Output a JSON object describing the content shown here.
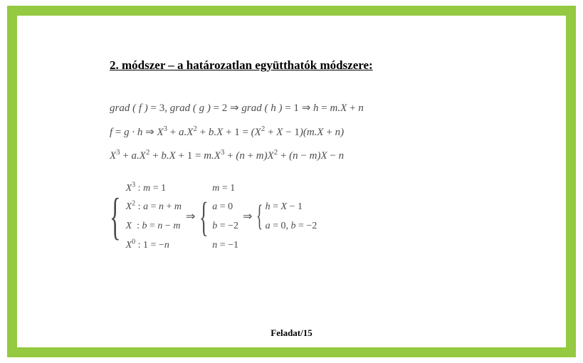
{
  "heading": "2. módszer – a határozatlan együtthatók módszere:",
  "math": {
    "line1_html": "<span>grad</span> ( <span>f</span> ) <span class='upright'>= 3,</span> <span>grad</span> ( <span>g</span> ) <span class='upright'>= 2</span> <span class='upright'>⇒</span> <span>grad</span> ( <span>h</span> ) <span class='upright'>= 1</span> <span class='upright'>⇒</span> <span>h</span> <span class='upright'>=</span> <span>m.X</span> <span class='upright'>+</span> <span>n</span>",
    "line2_html": "<span>f</span> <span class='upright'>=</span> <span>g · h</span> <span class='upright'>⇒</span> <span>X</span><sup class='upright'>3</sup> <span class='upright'>+</span> <span>a.X</span><sup class='upright'>2</sup> <span class='upright'>+</span> <span>b.X</span> <span class='upright'>+ 1 =</span> (<span>X</span><sup class='upright'>2</sup> <span class='upright'>+</span> <span>X</span> <span class='upright'>− 1</span>)(<span>m.X</span> <span class='upright'>+</span> <span>n</span>)",
    "line3_html": "<span>X</span><sup class='upright'>3</sup> <span class='upright'>+</span> <span>a.X</span><sup class='upright'>2</sup> <span class='upright'>+</span> <span>b.X</span> <span class='upright'>+ 1 =</span> <span>m.X</span><sup class='upright'>3</sup> <span class='upright'>+</span> (<span>n</span> <span class='upright'>+</span> <span>m</span>)<span>X</span><sup class='upright'>2</sup> <span class='upright'>+</span> (<span>n</span> <span class='upright'>−</span> <span>m</span>)<span>X</span> <span class='upright'>−</span> <span>n</span>"
  },
  "system1": {
    "r1": "X³ : m = 1",
    "r2": "X² : a = n + m",
    "r3": "X  : b = n − m",
    "r4": "X⁰ : 1 = −n"
  },
  "system2": {
    "r1": "m = 1",
    "r2": "a = 0",
    "r3": "b = −2",
    "r4": "n = −1"
  },
  "system3": {
    "r1": "h = X − 1",
    "r2": "a = 0, b = −2"
  },
  "footer": "Feladat/15",
  "colors": {
    "frame": "#94c941",
    "text_black": "#000000",
    "math_gray": "#4b4b4b",
    "background": "#ffffff"
  },
  "typography": {
    "heading_fontsize": 17,
    "math_fontsize": 15,
    "footer_fontsize": 13,
    "font_family": "Times New Roman"
  }
}
